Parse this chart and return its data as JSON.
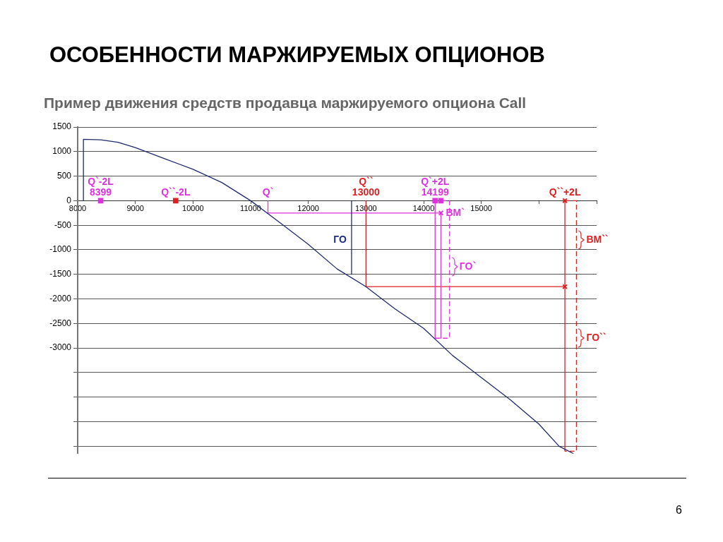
{
  "chart_data": {
    "type": "line",
    "title": "ОСОБЕННОСТИ МАРЖИРУЕМЫХ ОПЦИОНОВ",
    "subtitle": "Пример движения средств продавца маржируемого опциона Call",
    "xlim": [
      8000,
      17000
    ],
    "xticks": [
      8000,
      9000,
      10000,
      11000,
      12000,
      13000,
      14000,
      15000,
      {
        "value": 16000,
        "label": null
      },
      {
        "value": 17000,
        "label": null
      }
    ],
    "ylim": [
      -5150,
      1500
    ],
    "yticks": [
      {
        "value": -5000,
        "label": null
      },
      {
        "value": -4500,
        "label": null
      },
      {
        "value": -4000,
        "label": null
      },
      {
        "value": -3500,
        "label": null
      },
      -3000,
      -2500,
      -2000,
      -1500,
      -1000,
      -500,
      0,
      500,
      1000,
      1500
    ],
    "grid": "y",
    "legend": false,
    "series": [
      {
        "color": "#1f2a6e",
        "x": [
          8100,
          8100,
          8400,
          8700,
          9000,
          9500,
          10000,
          10500,
          11000,
          11500,
          12000,
          12500,
          13000,
          13500,
          14000,
          14500,
          15000,
          15500,
          16000,
          16350,
          16600
        ],
        "values": [
          0,
          1250,
          1240,
          1190,
          1080,
          860,
          640,
          370,
          0,
          -440,
          -890,
          -1390,
          -1750,
          -2200,
          -2600,
          -3150,
          -3600,
          -4050,
          -4550,
          -5000,
          -5150
        ]
      },
      {
        "color": "#1f2a8a",
        "x": [
          12750,
          12750
        ],
        "values": [
          0,
          -1500
        ]
      },
      {
        "color": "#e030e0",
        "x": [
          11300,
          11300,
          14300
        ],
        "values": [
          0,
          -250,
          -250
        ]
      },
      {
        "color": "#e030e0",
        "x": [
          14199,
          14199
        ],
        "values": [
          0,
          -2800
        ]
      },
      {
        "color": "#e030e0",
        "x": [
          14300,
          14300
        ],
        "values": [
          -250,
          -2800
        ]
      },
      {
        "color": "#e030e0",
        "line_style": "dashed",
        "x": [
          14199,
          14450,
          14450,
          14300
        ],
        "values": [
          -2800,
          -2800,
          0,
          0
        ]
      },
      {
        "color": "#e02020",
        "x": [
          13000,
          13000,
          16450
        ],
        "values": [
          0,
          -1750,
          -1750
        ]
      },
      {
        "color": "#e02020",
        "x": [
          16450,
          16450
        ],
        "values": [
          0,
          -5100
        ]
      },
      {
        "color": "#e02020",
        "line_style": "dashed",
        "x": [
          16450,
          16650,
          16650,
          16450
        ],
        "values": [
          0,
          0,
          -5100,
          -5100
        ]
      },
      {
        "type": "scatter",
        "color": "#e030e0",
        "marker": "square",
        "x": [
          8399,
          14199,
          14300
        ],
        "values": [
          0,
          0,
          0
        ]
      },
      {
        "type": "scatter",
        "color": "#e02020",
        "marker": "square",
        "x": [
          9700
        ],
        "values": [
          0
        ]
      },
      {
        "type": "scatter",
        "color": "#e030e0",
        "marker": "cross",
        "x": [
          14300
        ],
        "values": [
          -250
        ]
      },
      {
        "type": "scatter",
        "color": "#e02020",
        "marker": "cross",
        "x": [
          16450,
          16450
        ],
        "values": [
          0,
          -1750
        ]
      }
    ],
    "annotations": [
      {
        "text": "8399",
        "x": 8399,
        "y": 0
      },
      {
        "text": "Q`-2L",
        "x": 8399,
        "y": 0
      },
      {
        "text": "Q``-2L",
        "x": 9700,
        "y": 0
      },
      {
        "text": "Q`",
        "x": 11300,
        "y": 0
      },
      {
        "text": "13000",
        "x": 13000,
        "y": 0
      },
      {
        "text": "Q``",
        "x": 13000,
        "y": 0
      },
      {
        "text": "14199",
        "x": 14199,
        "y": 0
      },
      {
        "text": "Q`+2L",
        "x": 14199,
        "y": 0
      },
      {
        "text": "ВМ`",
        "x": 14300,
        "y": -250
      },
      {
        "text": "Q``+2L",
        "x": 16450,
        "y": 0
      },
      {
        "text": "ГО",
        "x": 12750,
        "y": -800
      },
      {
        "text": "ГО`",
        "x": 14450,
        "y": -1350
      },
      {
        "text": "ВМ``",
        "x": 16650,
        "y": -800
      },
      {
        "text": "ГО``",
        "x": 16650,
        "y": -2800
      },
      "6"
    ]
  }
}
